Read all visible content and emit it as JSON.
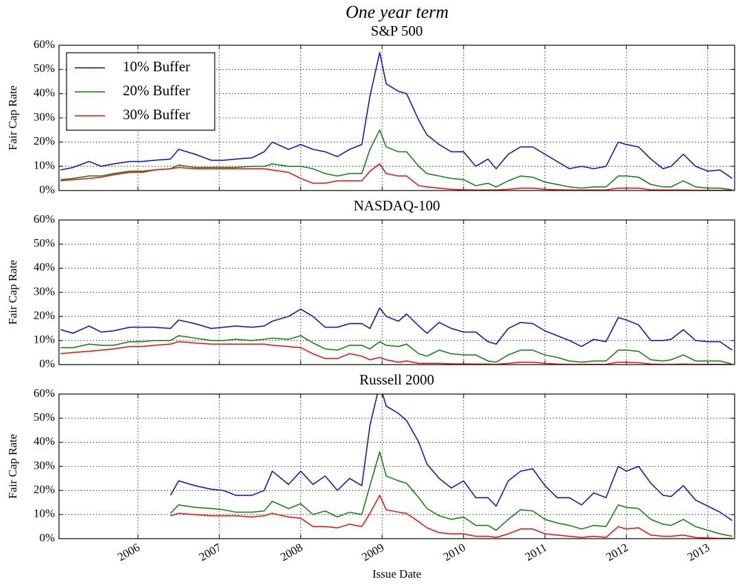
{
  "title": "One year term",
  "chart_data": [
    {
      "type": "line",
      "title": "S&P 500",
      "ylabel": "Fair Cap Rate",
      "legend": "upper left",
      "grid": true,
      "show_xticklabels": false,
      "xlim": [
        2005.03,
        2013.33
      ],
      "xticks": [
        2006,
        2007,
        2008,
        2009,
        2010,
        2011,
        2012,
        2013
      ],
      "ylim": [
        0,
        60
      ],
      "yticks": [
        {
          "value": 0,
          "label": "0%"
        },
        {
          "value": 10,
          "label": "10%"
        },
        {
          "value": 20,
          "label": "20%"
        },
        {
          "value": 30,
          "label": "30%"
        },
        {
          "value": 40,
          "label": "40%"
        },
        {
          "value": 50,
          "label": "50%"
        },
        {
          "value": 60,
          "label": "60%"
        }
      ],
      "x": [
        2005.05,
        2005.2,
        2005.4,
        2005.55,
        2005.7,
        2005.9,
        2006.05,
        2006.2,
        2006.4,
        2006.5,
        2006.7,
        2006.9,
        2007.05,
        2007.2,
        2007.4,
        2007.55,
        2007.65,
        2007.85,
        2008.0,
        2008.15,
        2008.3,
        2008.45,
        2008.6,
        2008.75,
        2008.85,
        2008.97,
        2009.05,
        2009.2,
        2009.3,
        2009.45,
        2009.55,
        2009.7,
        2009.85,
        2010.0,
        2010.15,
        2010.3,
        2010.4,
        2010.55,
        2010.7,
        2010.85,
        2011.0,
        2011.15,
        2011.3,
        2011.45,
        2011.6,
        2011.75,
        2011.9,
        2012.0,
        2012.15,
        2012.3,
        2012.45,
        2012.55,
        2012.7,
        2012.85,
        2013.0,
        2013.15,
        2013.3
      ],
      "series": [
        {
          "name": "10% Buffer",
          "color": "#0000ff",
          "values": [
            8.5,
            9.5,
            12,
            10,
            11,
            12,
            12,
            12.5,
            13,
            17,
            15,
            12.5,
            12.5,
            13,
            13.5,
            16,
            20,
            17,
            19,
            17,
            16,
            14,
            17,
            19,
            39,
            57,
            44,
            41,
            40,
            29,
            23,
            19,
            16,
            16,
            10,
            13,
            9,
            15,
            18,
            18,
            15,
            12,
            9,
            10,
            9,
            10,
            20,
            19,
            18,
            13,
            9,
            10,
            15,
            10,
            8,
            8.5,
            5
          ]
        },
        {
          "name": "20% Buffer",
          "color": "#008000",
          "values": [
            4.5,
            5,
            6,
            6,
            7,
            8,
            8,
            8.5,
            9,
            10.5,
            9.5,
            9.5,
            9.5,
            9.5,
            10,
            10,
            11,
            10,
            10,
            9,
            7,
            6,
            7,
            7,
            17,
            25,
            18,
            16,
            16,
            10,
            7,
            6,
            5,
            4.5,
            2,
            3,
            1.5,
            4,
            6,
            5.5,
            3.5,
            2.5,
            1.5,
            1,
            1.5,
            1.5,
            6,
            6,
            5.5,
            2.5,
            1.5,
            1.5,
            4,
            1.5,
            1,
            1,
            0.3
          ]
        },
        {
          "name": "30% Buffer",
          "color": "#ff0000",
          "values": [
            4,
            4.5,
            5,
            5.5,
            6.5,
            7.5,
            7.5,
            8.5,
            9,
            9.5,
            9,
            9,
            9,
            9,
            9,
            9,
            8.5,
            7.5,
            5,
            3,
            3,
            4,
            4,
            4,
            8,
            11,
            7,
            6,
            6,
            2,
            1.5,
            1,
            0.5,
            0.3,
            0.2,
            0.2,
            0.2,
            0.5,
            1,
            1,
            0.5,
            0.3,
            0.2,
            0.2,
            0.2,
            0.2,
            1,
            1,
            1,
            0.3,
            0.2,
            0.2,
            0.2,
            0.1,
            0.1,
            0.1,
            0.1
          ]
        }
      ]
    },
    {
      "type": "line",
      "title": "NASDAQ-100",
      "ylabel": "Fair Cap Rate",
      "grid": true,
      "show_xticklabels": false,
      "xlim": [
        2005.03,
        2013.33
      ],
      "xticks": [
        2006,
        2007,
        2008,
        2009,
        2010,
        2011,
        2012,
        2013
      ],
      "ylim": [
        0,
        60
      ],
      "yticks": [
        {
          "value": 0,
          "label": "0%"
        },
        {
          "value": 10,
          "label": "10%"
        },
        {
          "value": 20,
          "label": "20%"
        },
        {
          "value": 30,
          "label": "30%"
        },
        {
          "value": 40,
          "label": "40%"
        },
        {
          "value": 50,
          "label": "50%"
        },
        {
          "value": 60,
          "label": "60%"
        }
      ],
      "x": [
        2005.05,
        2005.2,
        2005.4,
        2005.55,
        2005.7,
        2005.9,
        2006.05,
        2006.2,
        2006.4,
        2006.5,
        2006.7,
        2006.9,
        2007.05,
        2007.2,
        2007.4,
        2007.55,
        2007.65,
        2007.85,
        2008.0,
        2008.15,
        2008.3,
        2008.45,
        2008.6,
        2008.75,
        2008.85,
        2008.97,
        2009.05,
        2009.2,
        2009.3,
        2009.45,
        2009.55,
        2009.7,
        2009.85,
        2010.0,
        2010.15,
        2010.3,
        2010.4,
        2010.55,
        2010.7,
        2010.85,
        2011.0,
        2011.15,
        2011.3,
        2011.45,
        2011.6,
        2011.75,
        2011.9,
        2012.0,
        2012.15,
        2012.3,
        2012.45,
        2012.55,
        2012.7,
        2012.85,
        2013.0,
        2013.15,
        2013.3
      ],
      "series": [
        {
          "color": "#0000ff",
          "values": [
            14.5,
            13,
            16,
            13.5,
            14,
            15.5,
            15.5,
            15.5,
            15,
            18.5,
            17,
            15,
            15.5,
            16,
            15.5,
            16,
            18,
            20,
            23,
            20,
            15.5,
            15.5,
            17,
            17,
            15,
            23.5,
            20,
            18,
            21,
            16,
            13,
            17.5,
            15,
            13.5,
            13.5,
            9.5,
            8.5,
            15,
            17.5,
            17,
            14,
            12,
            10,
            7.5,
            10.5,
            9.5,
            19.5,
            18.5,
            16.5,
            10,
            10,
            10.5,
            14.5,
            10,
            9.5,
            9.5,
            6
          ]
        },
        {
          "color": "#008000",
          "values": [
            7,
            7,
            8.5,
            8,
            8,
            9.5,
            9.5,
            10,
            10,
            12,
            11,
            10,
            10,
            10.5,
            10,
            10.5,
            11,
            10.5,
            12,
            9,
            6.5,
            6,
            8,
            8,
            6.5,
            9.5,
            8,
            7.5,
            8.5,
            4.5,
            3.5,
            6,
            4.5,
            4,
            4,
            1.5,
            1,
            4,
            6,
            6,
            4,
            3,
            1.5,
            1,
            1.5,
            1.5,
            6,
            6,
            5.5,
            2,
            1.5,
            2,
            4,
            1.5,
            1.5,
            1.5,
            0.2
          ]
        },
        {
          "color": "#ff0000",
          "values": [
            4.5,
            5,
            5.5,
            6,
            6.5,
            7.5,
            7.5,
            8,
            8.5,
            9.5,
            9,
            8.5,
            8.5,
            8.5,
            8.5,
            8.5,
            8,
            7.5,
            7,
            4.5,
            2.5,
            2.5,
            4.5,
            3.5,
            2,
            3,
            2,
            1,
            1.5,
            0.5,
            0.5,
            0.5,
            0.3,
            0.3,
            0.2,
            0.2,
            0.1,
            0.5,
            1,
            1,
            0.5,
            0.2,
            0.1,
            0.1,
            0.1,
            0.1,
            1,
            1,
            0.8,
            0.2,
            0.1,
            0.1,
            0.2,
            0.1,
            0.1,
            0.1,
            0.1
          ]
        }
      ]
    },
    {
      "type": "line",
      "title": "Russell 2000",
      "ylabel": "Fair Cap Rate",
      "xlabel": "Issue Date",
      "grid": true,
      "show_xticklabels": true,
      "xlim": [
        2005.03,
        2013.33
      ],
      "xticks": [
        2006,
        2007,
        2008,
        2009,
        2010,
        2011,
        2012,
        2013
      ],
      "ylim": [
        0,
        60
      ],
      "yticks": [
        {
          "value": 0,
          "label": "0%"
        },
        {
          "value": 10,
          "label": "10%"
        },
        {
          "value": 20,
          "label": "20%"
        },
        {
          "value": 30,
          "label": "30%"
        },
        {
          "value": 40,
          "label": "40%"
        },
        {
          "value": 50,
          "label": "50%"
        },
        {
          "value": 60,
          "label": "60%"
        }
      ],
      "x": [
        2005.05,
        2005.2,
        2005.4,
        2005.55,
        2005.7,
        2005.9,
        2006.05,
        2006.2,
        2006.4,
        2006.5,
        2006.7,
        2006.9,
        2007.05,
        2007.2,
        2007.4,
        2007.55,
        2007.65,
        2007.85,
        2008.0,
        2008.15,
        2008.3,
        2008.45,
        2008.6,
        2008.75,
        2008.85,
        2008.97,
        2009.05,
        2009.2,
        2009.3,
        2009.45,
        2009.55,
        2009.7,
        2009.85,
        2010.0,
        2010.15,
        2010.3,
        2010.4,
        2010.55,
        2010.7,
        2010.85,
        2011.0,
        2011.15,
        2011.3,
        2011.45,
        2011.6,
        2011.75,
        2011.9,
        2012.0,
        2012.15,
        2012.3,
        2012.45,
        2012.55,
        2012.7,
        2012.85,
        2013.0,
        2013.15,
        2013.3
      ],
      "series": [
        {
          "color": "#0000ff",
          "values": [
            null,
            null,
            null,
            null,
            null,
            null,
            null,
            null,
            18,
            24,
            22,
            20.5,
            20,
            18,
            18,
            20,
            28,
            22.5,
            28,
            22.5,
            26,
            20,
            25,
            22,
            47,
            64,
            55,
            52,
            49,
            40,
            31,
            25,
            21,
            24,
            17,
            17,
            13.5,
            24,
            28,
            29,
            22,
            17,
            17,
            14,
            19,
            17,
            30,
            28,
            30,
            23,
            18,
            17.5,
            22,
            16,
            13.5,
            11,
            7.5
          ]
        },
        {
          "color": "#008000",
          "values": [
            null,
            null,
            null,
            null,
            null,
            null,
            null,
            null,
            10.5,
            14,
            13,
            12.5,
            12,
            11,
            11,
            11.5,
            15.5,
            12.5,
            14.5,
            10,
            11.5,
            9,
            11,
            10,
            22,
            36,
            26,
            24,
            23,
            17,
            12.5,
            9.5,
            8,
            9,
            5.5,
            5.5,
            3.5,
            8,
            12,
            11.5,
            8,
            6.5,
            5.5,
            4,
            5.5,
            5,
            14,
            13,
            12.5,
            8,
            6,
            5.5,
            8,
            5,
            3.5,
            2,
            1
          ]
        },
        {
          "color": "#ff0000",
          "values": [
            null,
            null,
            null,
            null,
            null,
            null,
            null,
            null,
            9.5,
            10.5,
            10,
            9.5,
            9.5,
            9.5,
            9,
            9.5,
            10.5,
            9,
            8.5,
            5,
            5,
            4.5,
            6,
            5,
            10.5,
            18,
            12,
            11,
            10.5,
            7,
            4.5,
            2.5,
            2,
            2,
            1,
            1,
            0.5,
            2,
            4,
            4,
            2,
            1.5,
            1,
            0.5,
            1,
            0.5,
            5,
            4,
            4.5,
            1.5,
            1,
            1,
            1.5,
            0.5,
            0.3,
            0.1,
            0.1
          ]
        }
      ]
    }
  ]
}
